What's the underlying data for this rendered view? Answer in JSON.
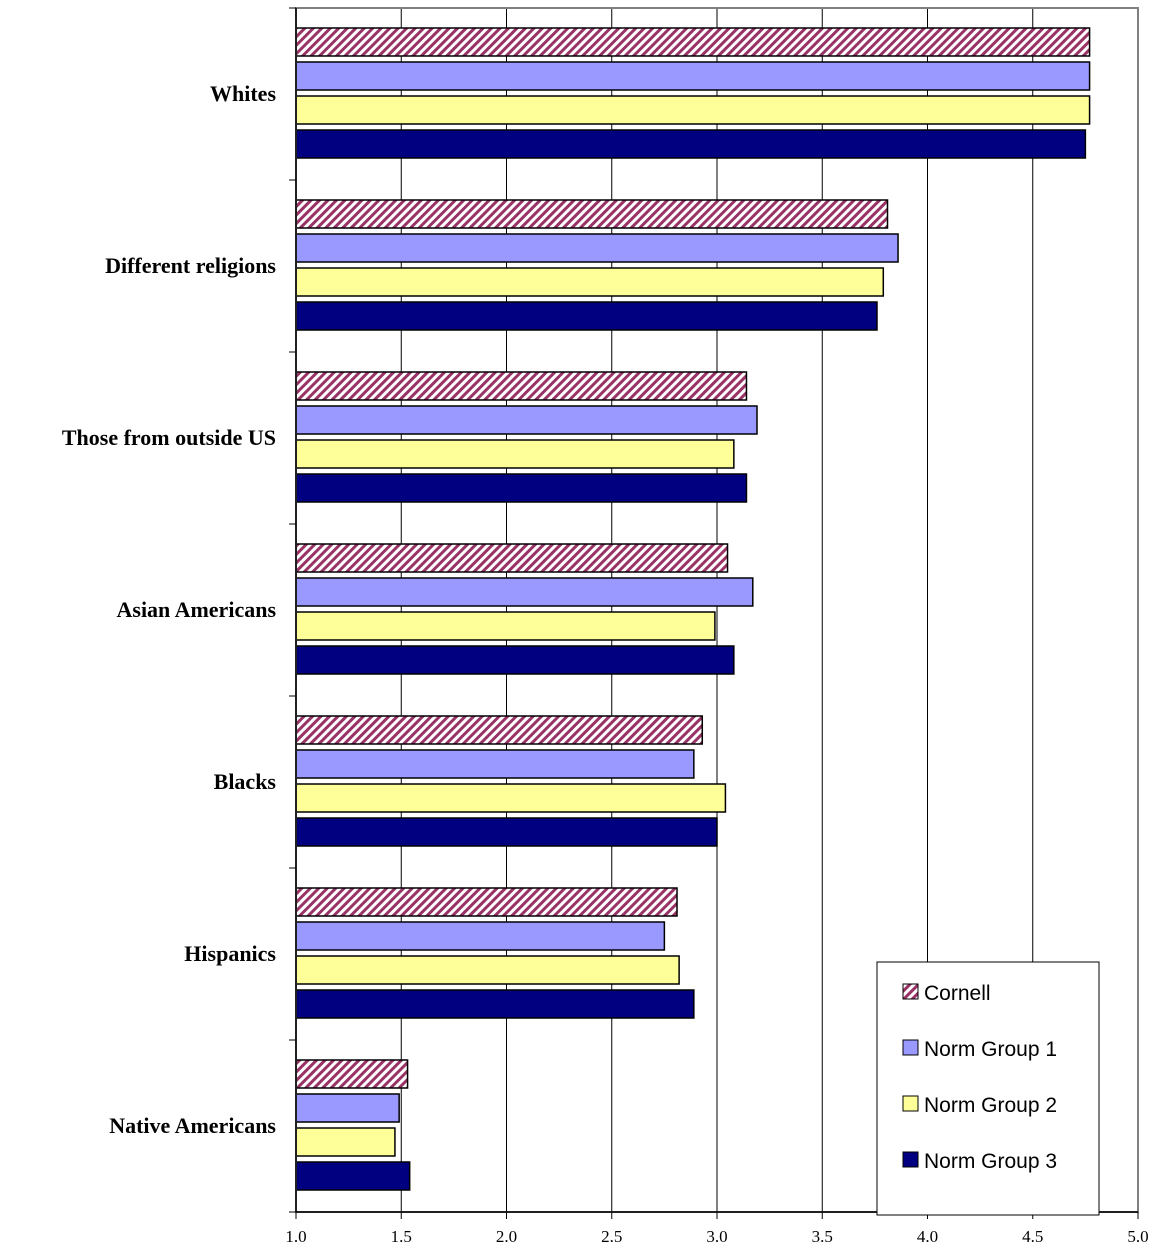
{
  "chart_data": {
    "type": "bar",
    "orientation": "horizontal",
    "categories": [
      "Whites",
      "Different religions",
      "Those from outside US",
      "Asian Americans",
      "Blacks",
      "Hispanics",
      "Native Americans"
    ],
    "series": [
      {
        "name": "Cornell",
        "values": [
          4.77,
          3.81,
          3.14,
          3.05,
          2.93,
          2.81,
          1.53
        ],
        "color": "#993366",
        "pattern": "diagonal-stripes"
      },
      {
        "name": "Norm Group 1",
        "values": [
          4.77,
          3.86,
          3.19,
          3.17,
          2.89,
          2.75,
          1.49
        ],
        "color": "#9999FF"
      },
      {
        "name": "Norm Group 2",
        "values": [
          4.77,
          3.79,
          3.08,
          2.99,
          3.04,
          2.82,
          1.47
        ],
        "color": "#FFFF99"
      },
      {
        "name": "Norm Group 3",
        "values": [
          4.75,
          3.76,
          3.14,
          3.08,
          3.0,
          2.89,
          1.54
        ],
        "color": "#000080"
      }
    ],
    "xlim": [
      1.0,
      5.0
    ],
    "xticks": [
      "1.0",
      "1.5",
      "2.0",
      "2.5",
      "3.0",
      "3.5",
      "4.0",
      "4.5",
      "5.0"
    ],
    "grid": "vertical",
    "legend": "bottom-right",
    "title": "",
    "xlabel": "",
    "ylabel": ""
  }
}
